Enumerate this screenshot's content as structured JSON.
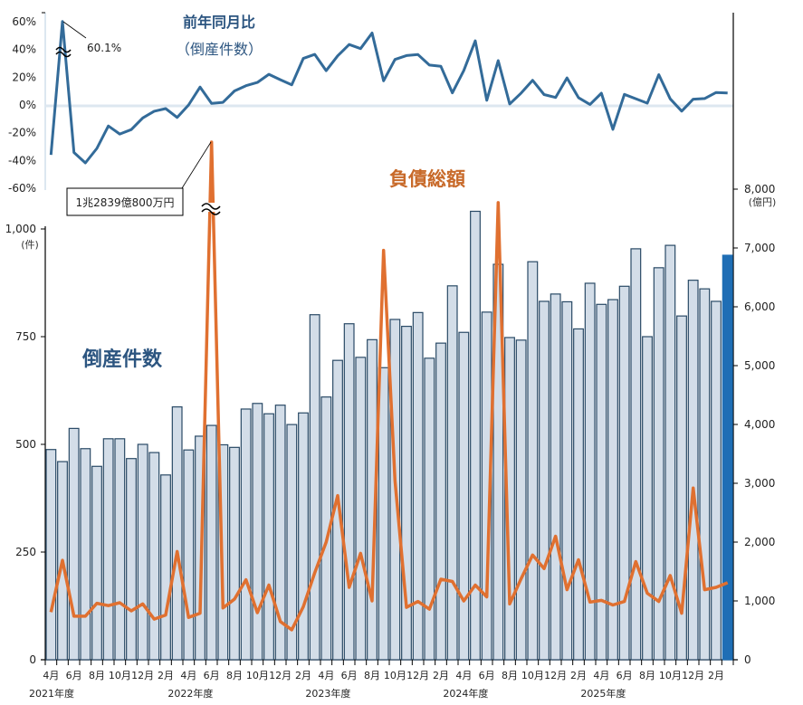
{
  "labels": {
    "yoy_title_line1": "前年同月比",
    "yoy_title_line2": "（倒産件数）",
    "debt_title": "負債総額",
    "count_title": "倒産件数",
    "peak_annotation_yoy": "60.1%",
    "peak_annotation_debt": "1兆2839億800万円",
    "left_unit": "(件)",
    "right_unit": "(億円)"
  },
  "colors": {
    "bar_fill": "#d3dde8",
    "bar_stroke": "#2a4a66",
    "bar_highlight": "#1f6eb5",
    "debt_line": "#e07030",
    "yoy_line": "#336b99",
    "zero_line": "#dde7f0"
  },
  "axes": {
    "yoy_ticks": [
      "60%",
      "40%",
      "20%",
      "0%",
      "-20%",
      "-40%",
      "-60%"
    ],
    "left_ticks": [
      "0",
      "250",
      "500",
      "750",
      "1,000"
    ],
    "right_ticks": [
      "0",
      "1,000",
      "2,000",
      "3,000",
      "4,000",
      "5,000",
      "6,000",
      "7,000",
      "8,000"
    ],
    "x_month_ticks": [
      "4月",
      "6月",
      "8月",
      "10月",
      "12月",
      "2月",
      "4月",
      "6月",
      "8月",
      "10月",
      "12月",
      "2月",
      "4月",
      "6月",
      "8月",
      "10月",
      "12月",
      "2月",
      "4月",
      "6月",
      "8月",
      "10月",
      "12月",
      "2月",
      "4月",
      "6月",
      "8月",
      "10月",
      "12月",
      "2月"
    ],
    "fiscal_years": [
      "2021年度",
      "2022年度",
      "2023年度",
      "2024年度",
      "2025年度"
    ]
  },
  "chart_data": [
    {
      "type": "bar",
      "title": "倒産件数",
      "ylabel": "件",
      "ylim": [
        0,
        1000
      ],
      "categories": [
        "2021-04",
        "2021-05",
        "2021-06",
        "2021-07",
        "2021-08",
        "2021-09",
        "2021-10",
        "2021-11",
        "2021-12",
        "2022-01",
        "2022-02",
        "2022-03",
        "2022-04",
        "2022-05",
        "2022-06",
        "2022-07",
        "2022-08",
        "2022-09",
        "2022-10",
        "2022-11",
        "2022-12",
        "2023-01",
        "2023-02",
        "2023-03",
        "2023-04",
        "2023-05",
        "2023-06",
        "2023-07",
        "2023-08",
        "2023-09",
        "2023-10",
        "2023-11",
        "2023-12",
        "2024-01",
        "2024-02",
        "2024-03",
        "2024-04",
        "2024-05",
        "2024-06",
        "2024-07",
        "2024-08",
        "2024-09",
        "2024-10",
        "2024-11",
        "2024-12",
        "2025-01",
        "2025-02",
        "2025-03",
        "2025-04",
        "2025-05",
        "2025-06",
        "2025-07",
        "2025-08",
        "2025-09",
        "2025-10",
        "2025-11",
        "2025-12",
        "2026-01",
        "2026-02",
        "2026-03"
      ],
      "values": [
        488,
        460,
        537,
        490,
        449,
        513,
        513,
        467,
        500,
        481,
        429,
        587,
        487,
        519,
        544,
        499,
        493,
        582,
        595,
        571,
        591,
        546,
        573,
        801,
        610,
        695,
        780,
        702,
        743,
        678,
        790,
        774,
        806,
        700,
        735,
        868,
        760,
        1041,
        807,
        918,
        748,
        742,
        924,
        832,
        849,
        831,
        768,
        874,
        825,
        836,
        867,
        954,
        750,
        910,
        962,
        798,
        881,
        861,
        832,
        939
      ],
      "highlight_index": 59
    },
    {
      "type": "line",
      "title": "負債総額",
      "ylabel": "億円",
      "ylim": [
        0,
        8000
      ],
      "values": [
        810,
        1690,
        740,
        740,
        960,
        920,
        970,
        830,
        950,
        690,
        760,
        1840,
        720,
        790,
        12839,
        880,
        1030,
        1360,
        800,
        1270,
        650,
        510,
        900,
        1480,
        2000,
        2790,
        1230,
        1810,
        1000,
        6960,
        3050,
        890,
        990,
        860,
        1370,
        1330,
        1000,
        1270,
        1070,
        7770,
        950,
        1380,
        1780,
        1550,
        2100,
        1190,
        1700,
        980,
        1010,
        930,
        990,
        1670,
        1130,
        990,
        1430,
        790,
        2920,
        1190,
        1230,
        1310
      ],
      "peak_label": "1兆2839億800万円"
    },
    {
      "type": "line",
      "title": "前年同月比（倒産件数）",
      "ylabel": "%",
      "ylim": [
        -60,
        60
      ],
      "values": [
        -35.9,
        60.1,
        -34.2,
        -41.7,
        -31.3,
        -15.1,
        -20.9,
        -17.7,
        -9.3,
        -4.5,
        -2.6,
        -9.0,
        0.0,
        12.9,
        1.2,
        1.9,
        10.1,
        13.9,
        16.2,
        22.1,
        18.2,
        14.5,
        33.5,
        36.4,
        24.7,
        35.4,
        43.5,
        40.6,
        51.8,
        17.4,
        32.8,
        35.6,
        36.3,
        28.7,
        27.8,
        8.7,
        24.8,
        46.2,
        3.4,
        31.9,
        0.7,
        8.6,
        17.8,
        7.5,
        5.4,
        19.5,
        5.3,
        0.4,
        8.5,
        -17.5,
        7.6,
        4.5,
        1.3,
        21.8,
        4.4,
        -4.4,
        4.2,
        4.6,
        9.0,
        8.6
      ],
      "peak_label": "60.1%"
    }
  ]
}
